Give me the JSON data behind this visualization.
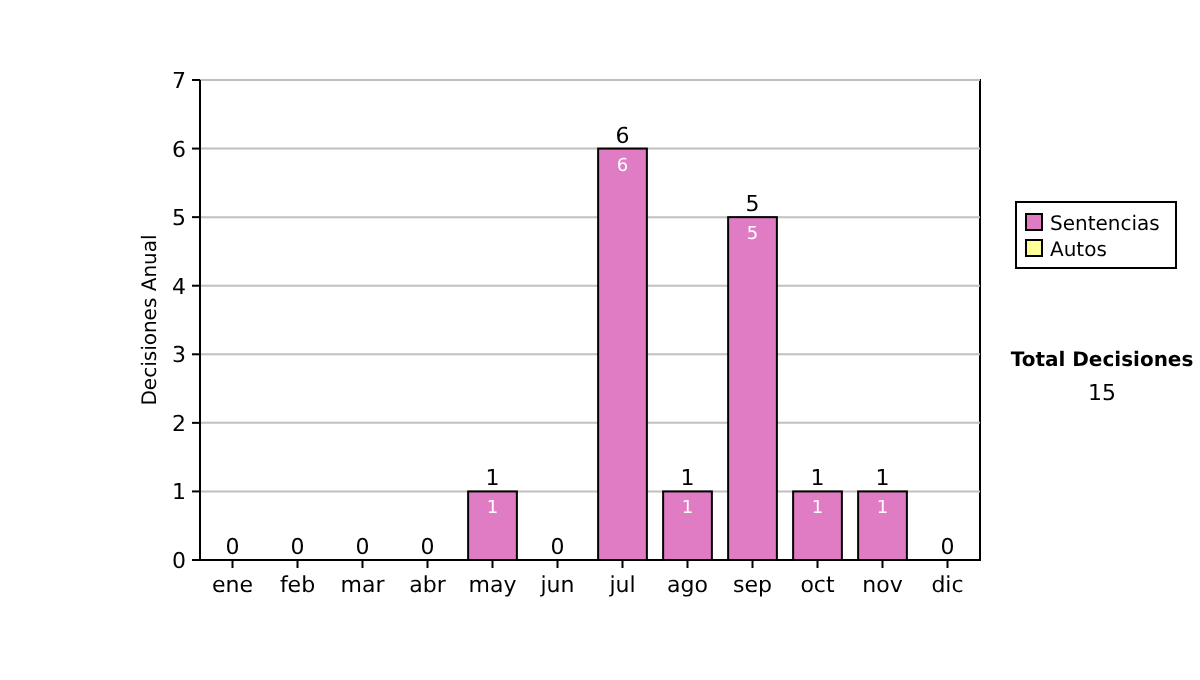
{
  "chart_data": {
    "type": "bar",
    "stacked": true,
    "ylabel": "Decisiones Anual",
    "categories": [
      "ene",
      "feb",
      "mar",
      "abr",
      "may",
      "jun",
      "jul",
      "ago",
      "sep",
      "oct",
      "nov",
      "dic"
    ],
    "series": [
      {
        "name": "Sentencias",
        "color": "#e07cc4",
        "values": [
          0,
          0,
          0,
          0,
          1,
          0,
          6,
          1,
          5,
          1,
          1,
          0
        ],
        "value_labels": [
          null,
          null,
          null,
          null,
          "1",
          null,
          "6",
          "1",
          "5",
          "1",
          "1",
          null
        ]
      },
      {
        "name": "Autos",
        "color": "#ffff99",
        "values": [
          0,
          0,
          0,
          0,
          0,
          0,
          0,
          0,
          0,
          0,
          0,
          0
        ]
      }
    ],
    "totals": [
      "0",
      "0",
      "0",
      "0",
      "1",
      "0",
      "6",
      "1",
      "5",
      "1",
      "1",
      "0"
    ],
    "ylim": [
      0,
      7
    ],
    "yticks": [
      0,
      1,
      2,
      3,
      4,
      5,
      6,
      7
    ],
    "grid": "y",
    "legend": "right",
    "annotations": [
      "Total Decisiones",
      "15"
    ]
  }
}
